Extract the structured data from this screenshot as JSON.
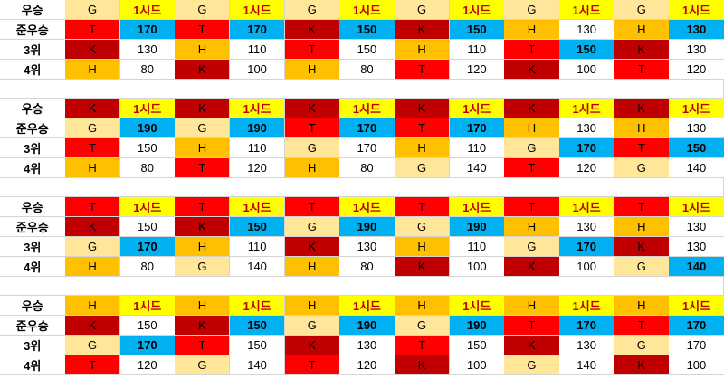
{
  "colors": {
    "T": "#ff0000",
    "K": "#c00000",
    "H": "#ffc000",
    "G": "#ffe699",
    "seed": "#ffff00",
    "seed_text": "#c00000",
    "blue": "#00b0f0",
    "white": "#ffffff"
  },
  "blocks": [
    {
      "rows": [
        {
          "label": "우승",
          "cells": [
            [
              "G",
              "G"
            ],
            [
              "1시드",
              "seed"
            ],
            [
              "G",
              "G"
            ],
            [
              "1시드",
              "seed"
            ],
            [
              "G",
              "G"
            ],
            [
              "1시드",
              "seed"
            ],
            [
              "G",
              "G"
            ],
            [
              "1시드",
              "seed"
            ],
            [
              "G",
              "G"
            ],
            [
              "1시드",
              "seed"
            ],
            [
              "G",
              "G"
            ],
            [
              "1시드",
              "seed"
            ]
          ]
        },
        {
          "label": "준우승",
          "cells": [
            [
              "T",
              "T"
            ],
            [
              "170",
              "blue"
            ],
            [
              "T",
              "T"
            ],
            [
              "170",
              "blue"
            ],
            [
              "K",
              "K"
            ],
            [
              "150",
              "blue"
            ],
            [
              "K",
              "K"
            ],
            [
              "150",
              "blue"
            ],
            [
              "H",
              "H"
            ],
            [
              "130",
              "white"
            ],
            [
              "H",
              "H"
            ],
            [
              "130",
              "blue"
            ]
          ]
        },
        {
          "label": "3위",
          "cells": [
            [
              "K",
              "K"
            ],
            [
              "130",
              "white"
            ],
            [
              "H",
              "H"
            ],
            [
              "110",
              "white"
            ],
            [
              "T",
              "T"
            ],
            [
              "150",
              "white"
            ],
            [
              "H",
              "H"
            ],
            [
              "110",
              "white"
            ],
            [
              "T",
              "T"
            ],
            [
              "150",
              "blue"
            ],
            [
              "K",
              "K"
            ],
            [
              "130",
              "white"
            ]
          ]
        },
        {
          "label": "4위",
          "cells": [
            [
              "H",
              "H"
            ],
            [
              "80",
              "white"
            ],
            [
              "K",
              "K"
            ],
            [
              "100",
              "white"
            ],
            [
              "H",
              "H"
            ],
            [
              "80",
              "white"
            ],
            [
              "T",
              "T"
            ],
            [
              "120",
              "white"
            ],
            [
              "K",
              "K"
            ],
            [
              "100",
              "white"
            ],
            [
              "T",
              "T"
            ],
            [
              "120",
              "white"
            ]
          ]
        }
      ]
    },
    {
      "rows": [
        {
          "label": "우승",
          "cells": [
            [
              "K",
              "K"
            ],
            [
              "1시드",
              "seed"
            ],
            [
              "K",
              "K"
            ],
            [
              "1시드",
              "seed"
            ],
            [
              "K",
              "K"
            ],
            [
              "1시드",
              "seed"
            ],
            [
              "K",
              "K"
            ],
            [
              "1시드",
              "seed"
            ],
            [
              "K",
              "K"
            ],
            [
              "1시드",
              "seed"
            ],
            [
              "K",
              "K"
            ],
            [
              "1시드",
              "seed"
            ]
          ]
        },
        {
          "label": "준우승",
          "cells": [
            [
              "G",
              "G"
            ],
            [
              "190",
              "blue"
            ],
            [
              "G",
              "G"
            ],
            [
              "190",
              "blue"
            ],
            [
              "T",
              "T"
            ],
            [
              "170",
              "blue"
            ],
            [
              "T",
              "T"
            ],
            [
              "170",
              "blue"
            ],
            [
              "H",
              "H"
            ],
            [
              "130",
              "white"
            ],
            [
              "H",
              "H"
            ],
            [
              "130",
              "white"
            ]
          ]
        },
        {
          "label": "3위",
          "cells": [
            [
              "T",
              "T"
            ],
            [
              "150",
              "white"
            ],
            [
              "H",
              "H"
            ],
            [
              "110",
              "white"
            ],
            [
              "G",
              "G"
            ],
            [
              "170",
              "white"
            ],
            [
              "H",
              "H"
            ],
            [
              "110",
              "white"
            ],
            [
              "G",
              "G"
            ],
            [
              "170",
              "blue"
            ],
            [
              "T",
              "T"
            ],
            [
              "150",
              "blue"
            ]
          ]
        },
        {
          "label": "4위",
          "cells": [
            [
              "H",
              "H"
            ],
            [
              "80",
              "white"
            ],
            [
              "T",
              "T"
            ],
            [
              "120",
              "white"
            ],
            [
              "H",
              "H"
            ],
            [
              "80",
              "white"
            ],
            [
              "G",
              "G"
            ],
            [
              "140",
              "white"
            ],
            [
              "T",
              "T"
            ],
            [
              "120",
              "white"
            ],
            [
              "G",
              "G"
            ],
            [
              "140",
              "white"
            ]
          ]
        }
      ]
    },
    {
      "rows": [
        {
          "label": "우승",
          "cells": [
            [
              "T",
              "T"
            ],
            [
              "1시드",
              "seed"
            ],
            [
              "T",
              "T"
            ],
            [
              "1시드",
              "seed"
            ],
            [
              "T",
              "T"
            ],
            [
              "1시드",
              "seed"
            ],
            [
              "T",
              "T"
            ],
            [
              "1시드",
              "seed"
            ],
            [
              "T",
              "T"
            ],
            [
              "1시드",
              "seed"
            ],
            [
              "T",
              "T"
            ],
            [
              "1시드",
              "seed"
            ]
          ]
        },
        {
          "label": "준우승",
          "cells": [
            [
              "K",
              "K"
            ],
            [
              "150",
              "white"
            ],
            [
              "K",
              "K"
            ],
            [
              "150",
              "blue"
            ],
            [
              "G",
              "G"
            ],
            [
              "190",
              "blue"
            ],
            [
              "G",
              "G"
            ],
            [
              "190",
              "blue"
            ],
            [
              "H",
              "H"
            ],
            [
              "130",
              "white"
            ],
            [
              "H",
              "H"
            ],
            [
              "130",
              "white"
            ]
          ]
        },
        {
          "label": "3위",
          "cells": [
            [
              "G",
              "G"
            ],
            [
              "170",
              "blue"
            ],
            [
              "H",
              "H"
            ],
            [
              "110",
              "white"
            ],
            [
              "K",
              "K"
            ],
            [
              "130",
              "white"
            ],
            [
              "H",
              "H"
            ],
            [
              "110",
              "white"
            ],
            [
              "G",
              "G"
            ],
            [
              "170",
              "blue"
            ],
            [
              "K",
              "K"
            ],
            [
              "130",
              "white"
            ]
          ]
        },
        {
          "label": "4위",
          "cells": [
            [
              "H",
              "H"
            ],
            [
              "80",
              "white"
            ],
            [
              "G",
              "G"
            ],
            [
              "140",
              "white"
            ],
            [
              "H",
              "H"
            ],
            [
              "80",
              "white"
            ],
            [
              "K",
              "K"
            ],
            [
              "100",
              "white"
            ],
            [
              "K",
              "K"
            ],
            [
              "100",
              "white"
            ],
            [
              "G",
              "G"
            ],
            [
              "140",
              "blue"
            ]
          ]
        }
      ]
    },
    {
      "rows": [
        {
          "label": "우승",
          "cells": [
            [
              "H",
              "H"
            ],
            [
              "1시드",
              "seed"
            ],
            [
              "H",
              "H"
            ],
            [
              "1시드",
              "seed"
            ],
            [
              "H",
              "H"
            ],
            [
              "1시드",
              "seed"
            ],
            [
              "H",
              "H"
            ],
            [
              "1시드",
              "seed"
            ],
            [
              "H",
              "H"
            ],
            [
              "1시드",
              "seed"
            ],
            [
              "H",
              "H"
            ],
            [
              "1시드",
              "seed"
            ]
          ]
        },
        {
          "label": "준우승",
          "cells": [
            [
              "K",
              "K"
            ],
            [
              "150",
              "white"
            ],
            [
              "K",
              "K"
            ],
            [
              "150",
              "blue"
            ],
            [
              "G",
              "G"
            ],
            [
              "190",
              "blue"
            ],
            [
              "G",
              "G"
            ],
            [
              "190",
              "blue"
            ],
            [
              "T",
              "T"
            ],
            [
              "170",
              "blue"
            ],
            [
              "T",
              "T"
            ],
            [
              "170",
              "blue"
            ]
          ]
        },
        {
          "label": "3위",
          "cells": [
            [
              "G",
              "G"
            ],
            [
              "170",
              "blue"
            ],
            [
              "T",
              "T"
            ],
            [
              "150",
              "white"
            ],
            [
              "K",
              "K"
            ],
            [
              "130",
              "white"
            ],
            [
              "T",
              "T"
            ],
            [
              "150",
              "white"
            ],
            [
              "K",
              "K"
            ],
            [
              "130",
              "white"
            ],
            [
              "G",
              "G"
            ],
            [
              "170",
              "white"
            ]
          ]
        },
        {
          "label": "4위",
          "cells": [
            [
              "T",
              "T"
            ],
            [
              "120",
              "white"
            ],
            [
              "G",
              "G"
            ],
            [
              "140",
              "white"
            ],
            [
              "T",
              "T"
            ],
            [
              "120",
              "white"
            ],
            [
              "K",
              "K"
            ],
            [
              "100",
              "white"
            ],
            [
              "G",
              "G"
            ],
            [
              "140",
              "white"
            ],
            [
              "K",
              "K"
            ],
            [
              "100",
              "white"
            ]
          ]
        }
      ]
    }
  ]
}
